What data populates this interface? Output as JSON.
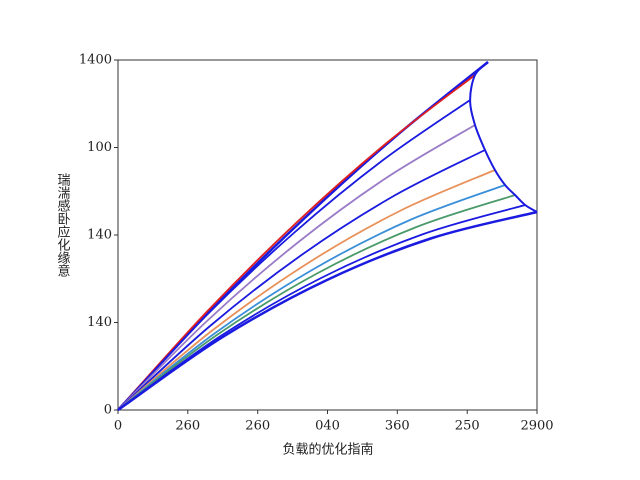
{
  "chart_data": {
    "type": "line",
    "xlabel": "负载的优化指南",
    "ylabel": "瑞湍感卧应化缘意",
    "xlim": [
      0,
      2900
    ],
    "ylim": [
      0,
      1400
    ],
    "xticks": [
      0,
      {
        "value": 483,
        "label": "260"
      },
      {
        "value": 967,
        "label": "260"
      },
      {
        "value": 1450,
        "label": "040"
      },
      {
        "value": 1933,
        "label": "360"
      },
      {
        "value": 2417,
        "label": "250"
      },
      2900
    ],
    "yticks": [
      0,
      {
        "value": 350,
        "label": "140"
      },
      {
        "value": 700,
        "label": "140"
      },
      {
        "value": 1050,
        "label": "100"
      },
      1400
    ],
    "series": [
      {
        "color": "#1a1ae0",
        "x": [
          0,
          640,
          1281,
          1921,
          2561
        ],
        "values": [
          0,
          398,
          762,
          1094,
          1392
        ]
      },
      {
        "color": "#e01f1f",
        "x": [
          0,
          618,
          1236,
          1853,
          2471
        ],
        "values": [
          0,
          395,
          750,
          1065,
          1340
        ]
      },
      {
        "color": "#1a1ae0",
        "x": [
          0,
          609,
          1219,
          1828,
          2437
        ],
        "values": [
          0,
          377,
          709,
          997,
          1240
        ]
      },
      {
        "color": "#9a7cc8",
        "x": [
          0,
          618,
          1236,
          1853,
          2471
        ],
        "values": [
          0,
          357,
          666,
          927,
          1140
        ]
      },
      {
        "color": "#1a1ae0",
        "x": [
          0,
          635,
          1270,
          1905,
          2540
        ],
        "values": [
          0,
          335,
          620,
          855,
          1040
        ]
      },
      {
        "color": "#e8915a",
        "x": [
          0,
          652,
          1305,
          1957,
          2609
        ],
        "values": [
          0,
          318,
          584,
          798,
          960
        ]
      },
      {
        "color": "#3a8fd8",
        "x": [
          0,
          670,
          1340,
          2009,
          2679
        ],
        "values": [
          0,
          307,
          559,
          757,
          900
        ]
      },
      {
        "color": "#4a9a6a",
        "x": [
          0,
          687,
          1374,
          2061,
          2748
        ],
        "values": [
          0,
          301,
          545,
          731,
          860
        ]
      },
      {
        "color": "#1a1ae0",
        "x": [
          0,
          705,
          1409,
          2114,
          2818
        ],
        "values": [
          0,
          294,
          529,
          704,
          820
        ]
      },
      {
        "color": "#1a1ae0",
        "x": [
          0,
          725,
          1450,
          2175,
          2900
        ],
        "values": [
          0,
          292,
          521,
          688,
          792
        ]
      }
    ]
  }
}
